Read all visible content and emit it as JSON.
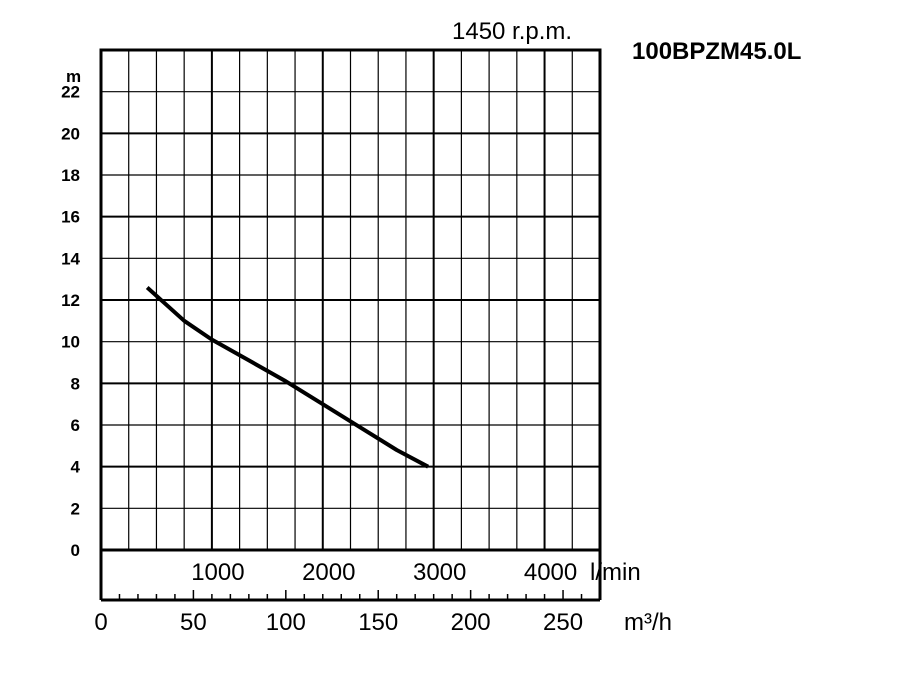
{
  "chart_data": {
    "type": "line",
    "model": "100BPZM45.0L",
    "speed_label": "1450 r.p.m.",
    "ylabel": "m",
    "yticks": [
      "0",
      "2",
      "4",
      "6",
      "8",
      "10",
      "12",
      "14",
      "16",
      "18",
      "20",
      "22"
    ],
    "ylim": [
      0,
      24
    ],
    "x_lmin_ticks": [
      "1000",
      "2000",
      "3000",
      "4000"
    ],
    "x_lmin_unit": "l/min",
    "x_m3h_ticks": [
      "0",
      "50",
      "100",
      "150",
      "200",
      "250"
    ],
    "x_m3h_unit": "m³/h",
    "xlim_m3h": [
      0,
      270
    ],
    "grid": true,
    "series": [
      {
        "x_m3h": [
          25,
          45,
          60,
          80,
          100,
          120,
          140,
          160,
          177
        ],
        "y_m": [
          12.6,
          11.0,
          10.1,
          9.1,
          8.1,
          7.0,
          5.9,
          4.8,
          4.0
        ]
      }
    ]
  }
}
